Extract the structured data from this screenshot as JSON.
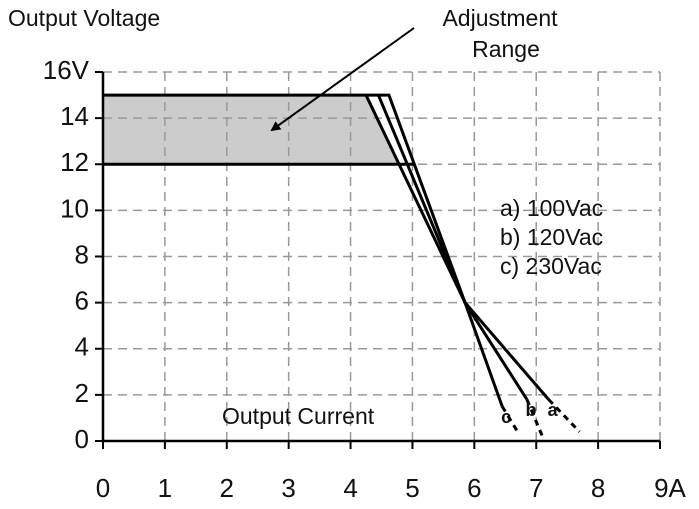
{
  "chart_data": {
    "type": "line",
    "y_label": "Output Voltage",
    "x_label": "Output Current",
    "annotation": {
      "lines": [
        "Adjustment",
        "Range"
      ]
    },
    "xlim": [
      0,
      9
    ],
    "ylim": [
      0,
      16
    ],
    "xticks": [
      0,
      1,
      2,
      3,
      4,
      5,
      6,
      7,
      8,
      {
        "value": 9,
        "label": "9A"
      }
    ],
    "yticks": [
      0,
      2,
      4,
      6,
      8,
      10,
      12,
      14,
      {
        "value": 16,
        "label": "16V"
      }
    ],
    "grid": true,
    "color": "#000000",
    "band": {
      "color": "#cccccc",
      "x": [
        0,
        4.25,
        4.78
      ],
      "upper": [
        15,
        15,
        12
      ],
      "lower": [
        12,
        12,
        12
      ]
    },
    "limit_line": {
      "x": [
        0,
        5.04
      ],
      "values": [
        12,
        12
      ]
    },
    "series": [
      {
        "name": "a) 100Vac",
        "end_label": "a",
        "x": [
          0,
          4.62,
          5.85,
          7.2,
          7.7
        ],
        "values": [
          15,
          15,
          6,
          1.8,
          0.4
        ]
      },
      {
        "name": "b) 120Vac",
        "end_label": "b",
        "x": [
          4.45,
          5.85,
          6.85,
          7.1
        ],
        "values": [
          15,
          6,
          1.8,
          0.2
        ]
      },
      {
        "name": "c) 230Vac",
        "end_label": "c",
        "x": [
          4.25,
          5.85,
          6.45,
          6.7
        ],
        "values": [
          15,
          6,
          1.5,
          0.4
        ]
      }
    ]
  }
}
